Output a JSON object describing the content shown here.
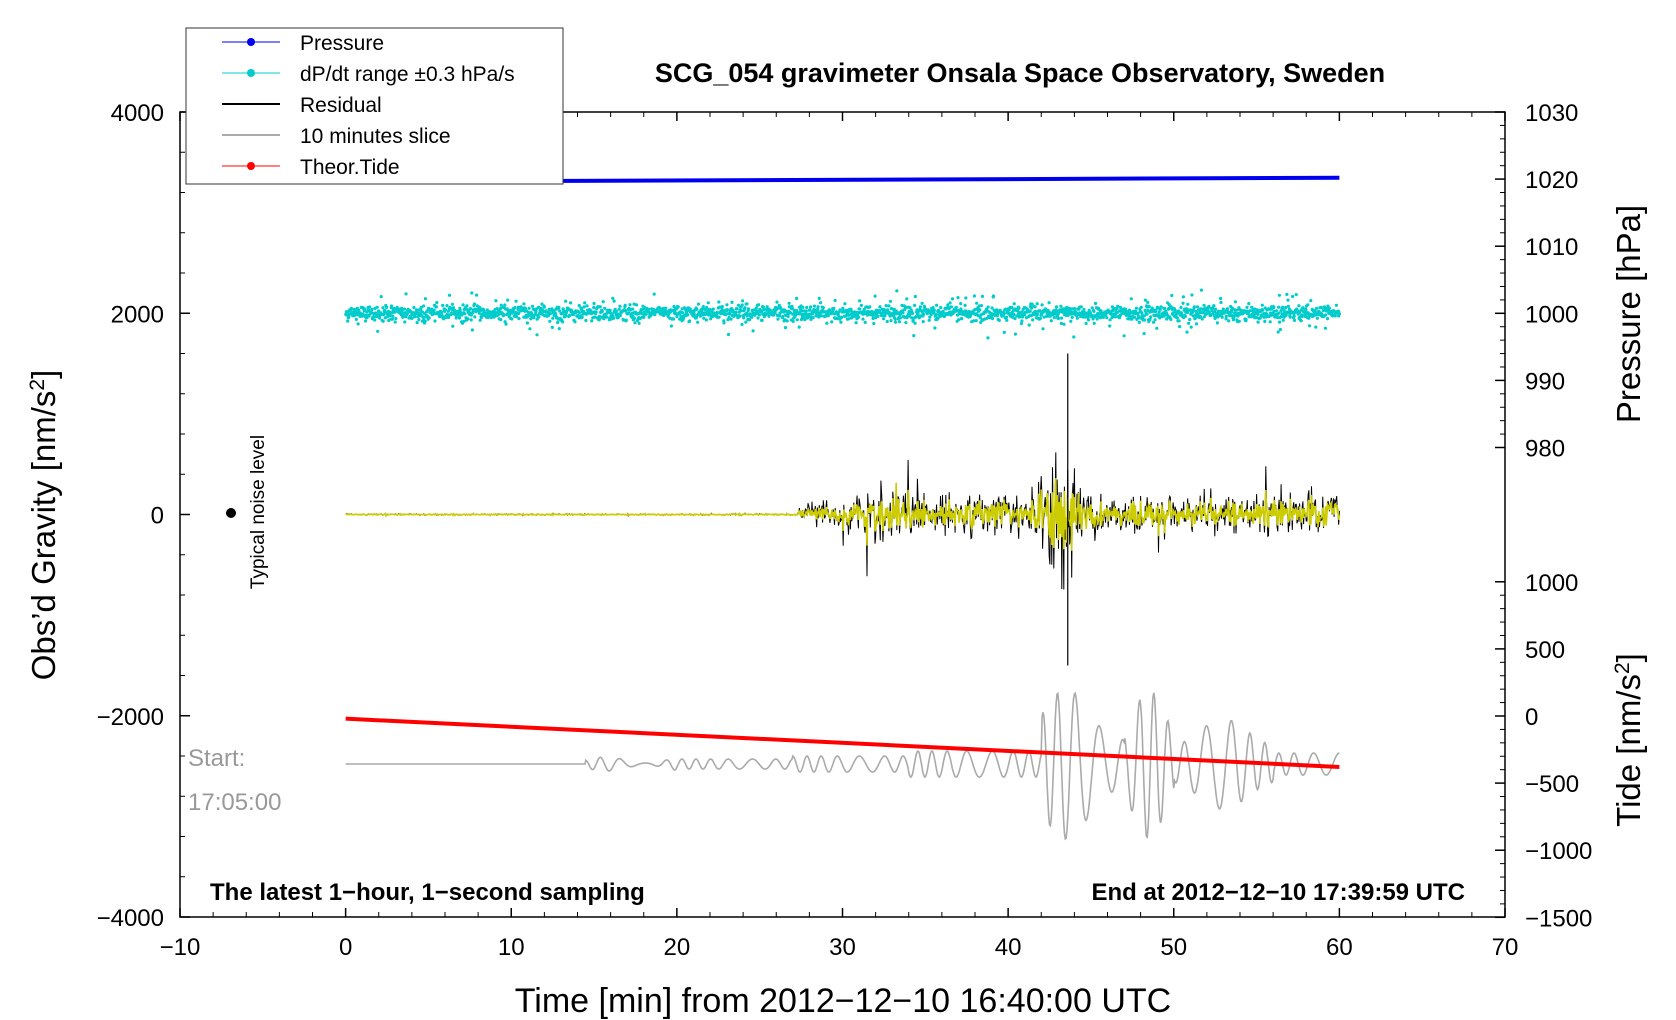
{
  "chart_data": {
    "type": "line",
    "title": "SCG_054 gravimeter Onsala Space Observatory, Sweden",
    "xlabel": "Time [min] from 2012−12−10 16:40:00 UTC",
    "ylabel_left": "Obs’d Gravity [nm/s²]",
    "ylabel_right_top": "Pressure [hPa]",
    "ylabel_right_bottom": "Tide [nm/s²]",
    "xlim": [
      -10,
      70
    ],
    "ylim": [
      -4000,
      4000
    ],
    "pressure_axis_range": [
      970,
      1030
    ],
    "tide_axis_range": [
      -1500,
      1500
    ],
    "x_ticks": [
      -10,
      0,
      10,
      20,
      30,
      40,
      50,
      60,
      70
    ],
    "x_tick_labels": [
      "−10",
      "0",
      "10",
      "20",
      "30",
      "40",
      "50",
      "60",
      "70"
    ],
    "y_ticks": [
      -4000,
      -2000,
      0,
      2000,
      4000
    ],
    "y_tick_labels": [
      "−4000",
      "−2000",
      "0",
      "2000",
      "4000"
    ],
    "pressure_ticks": [
      980,
      990,
      1000,
      1010,
      1020,
      1030
    ],
    "tide_ticks": [
      -1500,
      -1000,
      -500,
      0,
      500,
      1000
    ],
    "tide_tick_labels": [
      "−1500",
      "−1000",
      "−500",
      "0",
      "500",
      "1000"
    ],
    "legend": [
      {
        "name": "Pressure",
        "color": "#0000ee",
        "marker": true
      },
      {
        "name": "dP/dt range ±0.3 hPa/s",
        "color": "#00cccc",
        "marker": true
      },
      {
        "name": "Residual",
        "color": "#000000",
        "marker": false
      },
      {
        "name": "10 minutes slice",
        "color": "#aaaaaa",
        "marker": false
      },
      {
        "name": "Theor.Tide",
        "color": "#ff0000",
        "marker": true
      }
    ],
    "series": [
      {
        "name": "Pressure",
        "color": "#0000ee",
        "axis": "pressure",
        "x": [
          0,
          60
        ],
        "values": [
          1019.6,
          1020.2
        ]
      },
      {
        "name": "dP/dt range ±0.3 hPa/s",
        "color": "#00cccc",
        "axis": "gravity",
        "x_range": [
          0,
          60
        ],
        "center": 2000,
        "typical_spread": 100
      },
      {
        "name": "Residual",
        "color": "#000000",
        "axis": "gravity",
        "x_range": [
          0,
          60
        ],
        "quiet_until": 27.5,
        "peak_max": 1600,
        "peak_min": -1500
      },
      {
        "name": "Residual (filtered)",
        "color": "#cccc00",
        "axis": "gravity",
        "x_range": [
          0,
          60
        ]
      },
      {
        "name": "10 minutes slice",
        "color": "#aaaaaa",
        "axis": "gravity",
        "x_range": [
          0,
          60
        ],
        "baseline": -2480
      },
      {
        "name": "Theor.Tide",
        "color": "#ff0000",
        "axis": "tide",
        "x": [
          0,
          60
        ],
        "values": [
          -20,
          -380
        ]
      }
    ],
    "noise_marker": {
      "label": "Typical noise level",
      "x": -7,
      "y": 0
    },
    "annotations": {
      "start_label": "Start:",
      "start_time": "17:05:00",
      "left_note": "The latest 1−hour, 1−second sampling",
      "right_note": "End at 2012−12−10 17:39:59 UTC"
    }
  }
}
